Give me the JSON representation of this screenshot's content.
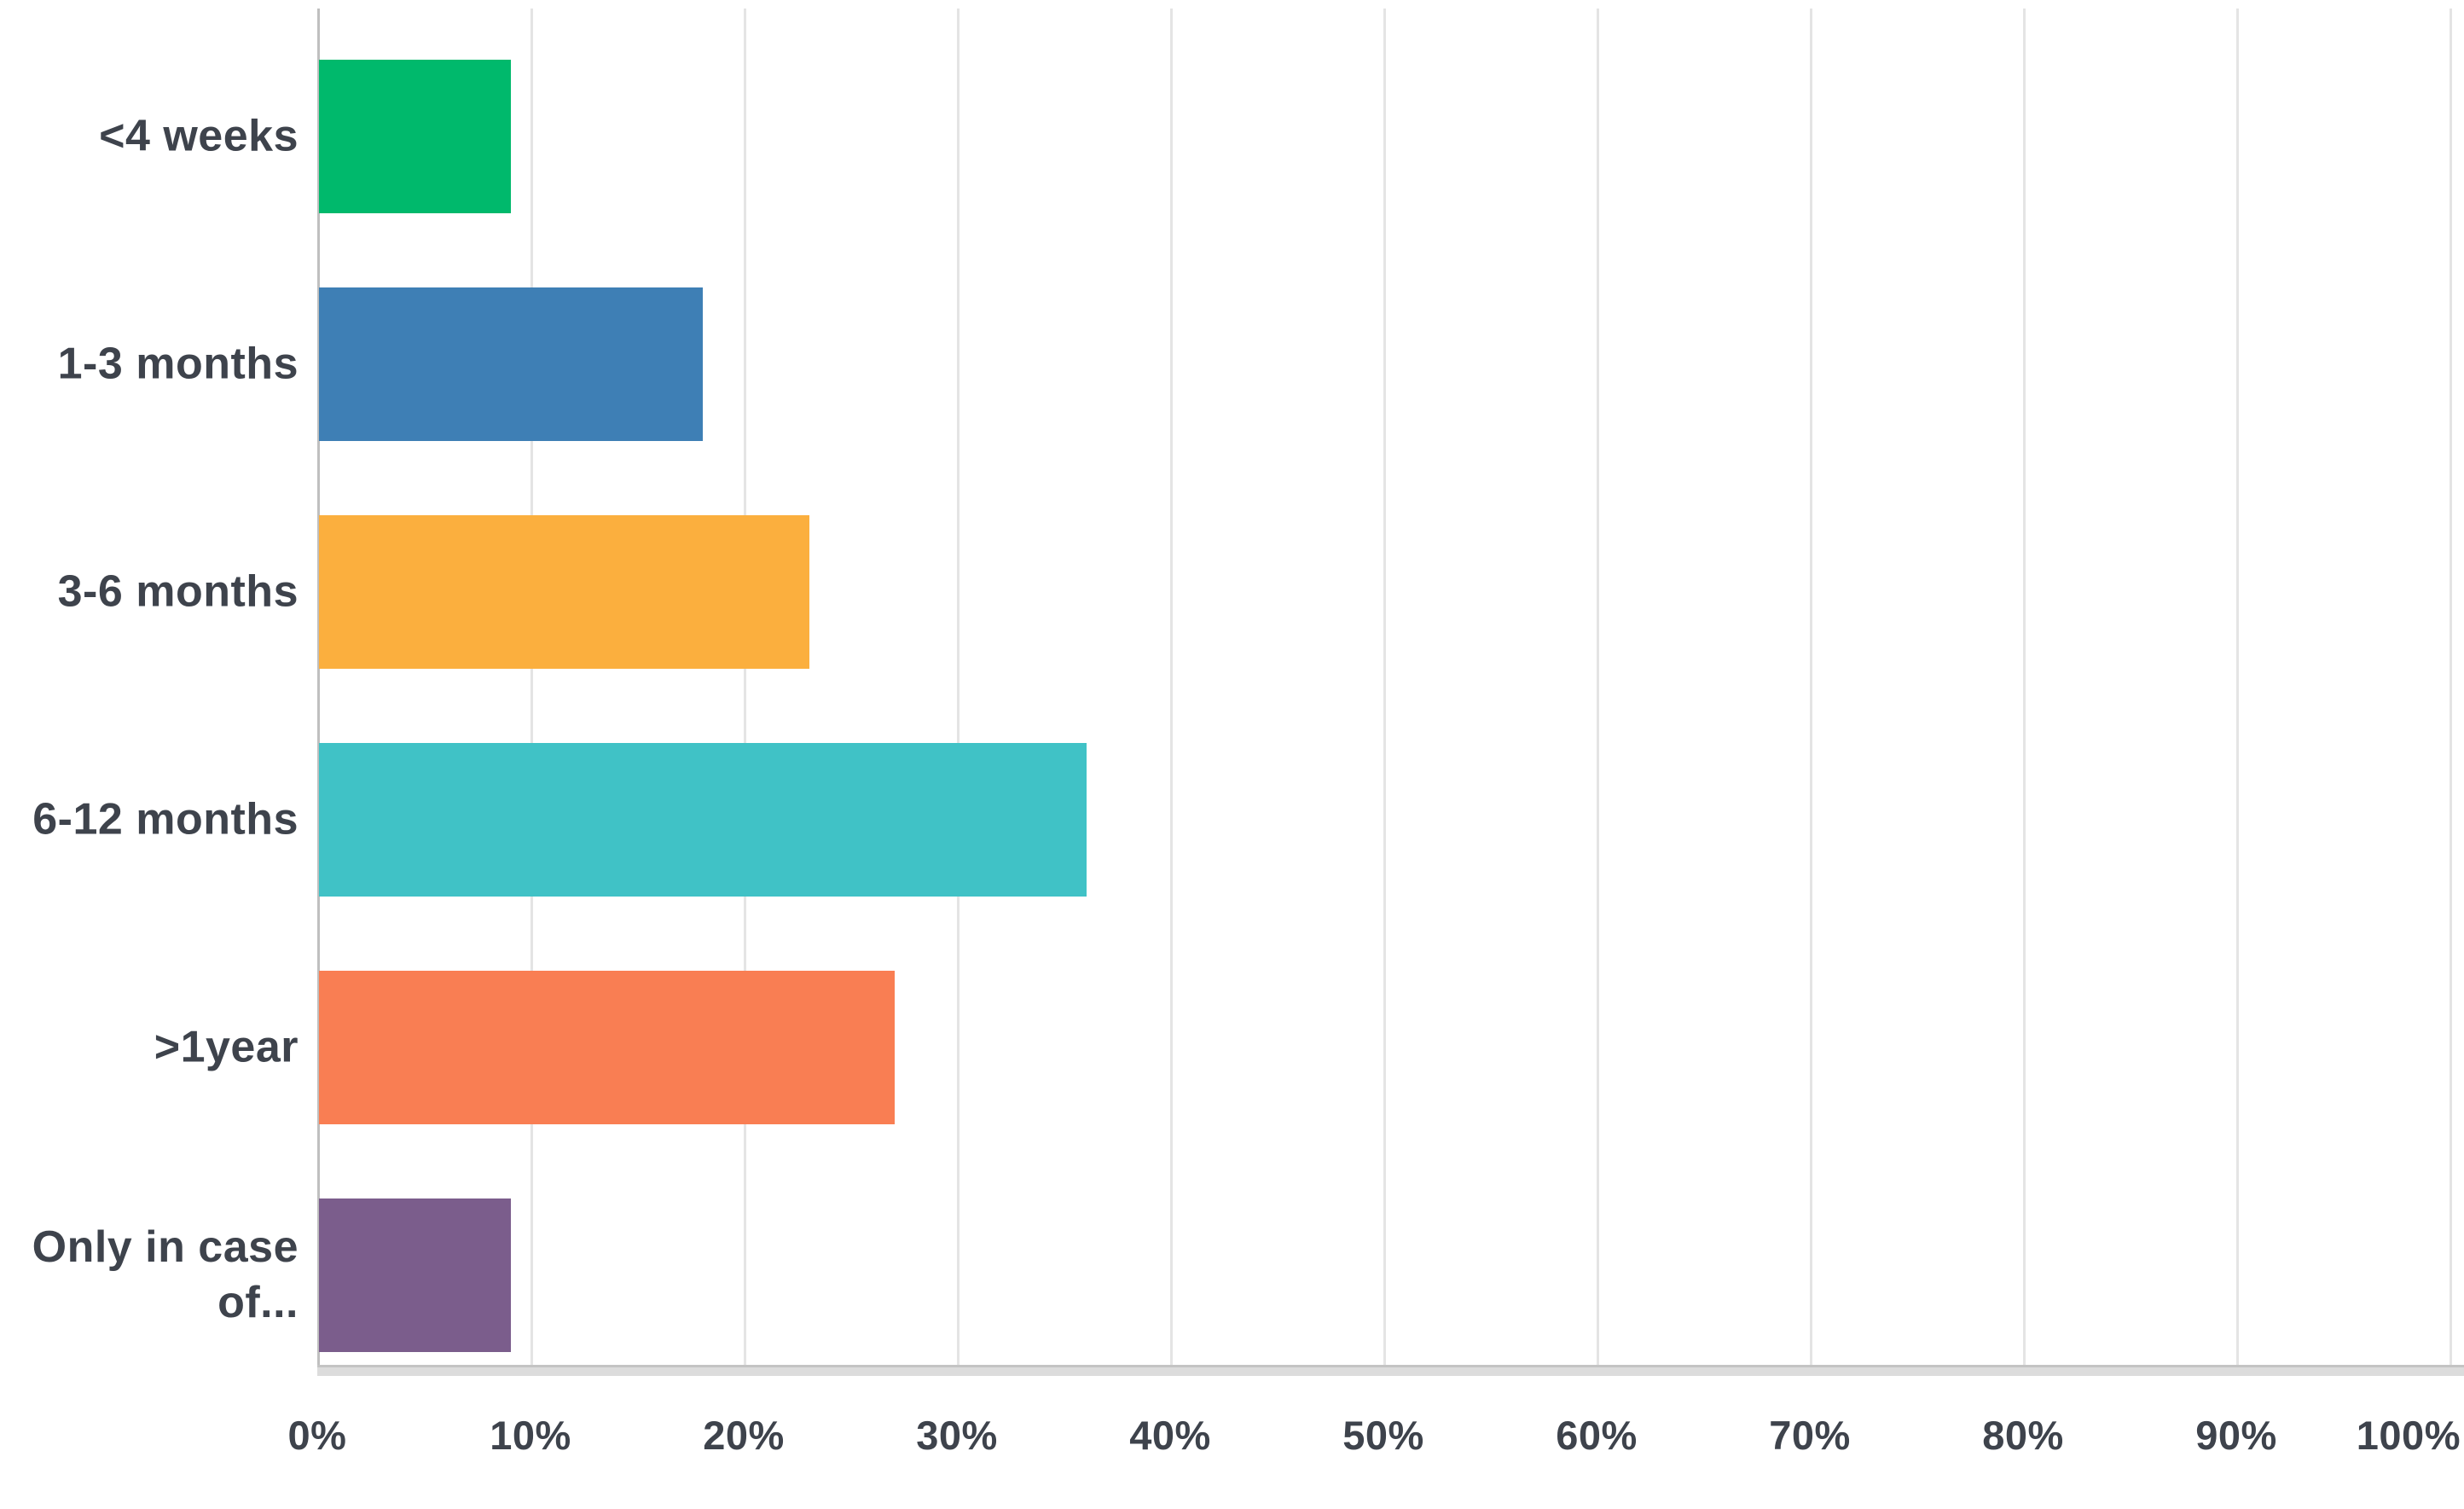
{
  "chart_data": {
    "type": "bar",
    "orientation": "horizontal",
    "title": "",
    "xlabel": "",
    "ylabel": "",
    "unit": "%",
    "categories": [
      "<4 weeks",
      "1-3 months",
      "3-6 months",
      "6-12 months",
      ">1year",
      "Only in case of..."
    ],
    "category_display_lines": [
      [
        "<4 weeks"
      ],
      [
        "1-3 months"
      ],
      [
        "3-6 months"
      ],
      [
        "6-12 months"
      ],
      [
        ">1year"
      ],
      [
        "Only in case",
        "of..."
      ]
    ],
    "values": [
      9,
      18,
      23,
      36,
      27,
      9
    ],
    "bar_colors": [
      "#00b96c",
      "#3e7fb5",
      "#fbaf3e",
      "#40c2c6",
      "#f97e53",
      "#7b5d8c"
    ],
    "x_ticks": [
      "0%",
      "10%",
      "20%",
      "30%",
      "40%",
      "50%",
      "60%",
      "70%",
      "80%",
      "90%",
      "100%"
    ],
    "x_tick_values": [
      0,
      10,
      20,
      30,
      40,
      50,
      60,
      70,
      80,
      90,
      100
    ],
    "xlim": [
      0,
      100
    ],
    "grid": "vertical",
    "legend": "none",
    "colors": {
      "grid_line": "#e4e4e4",
      "axis_line": "#bfbfbf",
      "baseline": "#c4c4c4",
      "baseline_shadow": "#dcdcdc",
      "label_text": "#3e434c",
      "background": "#ffffff"
    }
  }
}
